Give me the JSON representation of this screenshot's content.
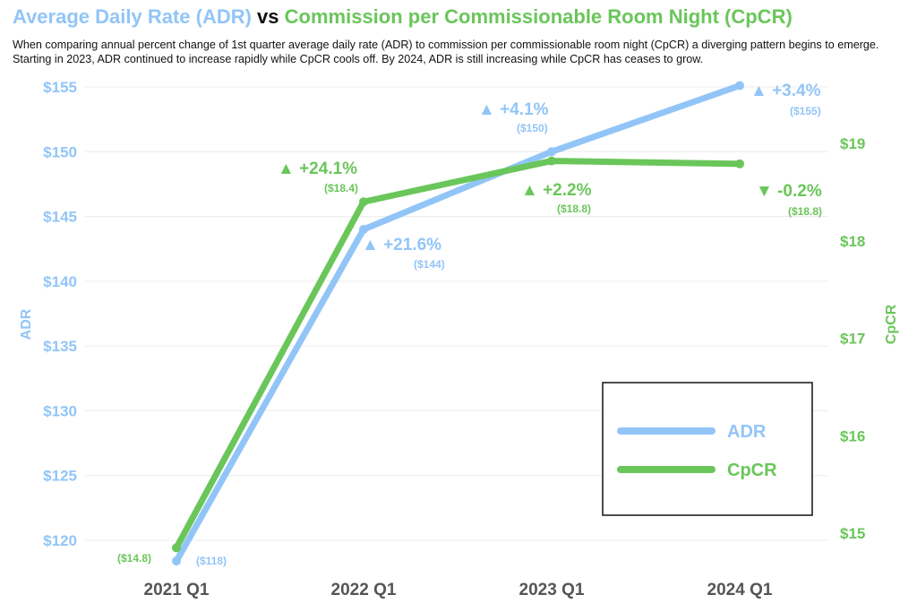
{
  "header": {
    "title_adr": "Average Daily Rate (ADR)",
    "title_vs": " vs ",
    "title_cpcr": "Commission per Commissionable Room Night (CpCR)",
    "subtitle": "When comparing annual percent change of 1st quarter average daily rate (ADR) to commission per commissionable room night (CpCR) a diverging pattern begins to emerge. Starting in 2023, ADR continued to increase rapidly while CpCR cools off. By 2024, ADR is still increasing while CpCR has ceases to grow."
  },
  "colors": {
    "adr": "#92c5f7",
    "cpcr": "#6ac65a",
    "text": "#111111"
  },
  "chart_data": {
    "type": "line",
    "title": "Average Daily Rate (ADR) vs Commission per Commissionable Room Night (CpCR)",
    "categories": [
      "2021 Q1",
      "2022 Q1",
      "2023 Q1",
      "2024 Q1"
    ],
    "series": [
      {
        "name": "ADR",
        "axis": "left",
        "values": [
          118.4,
          144,
          150,
          155.1
        ],
        "pct_labels": [
          "",
          "▲ +21.6%",
          "▲ +4.1%",
          "▲ +3.4%"
        ],
        "value_labels": [
          "($118)",
          "($144)",
          "($150)",
          "($155)"
        ]
      },
      {
        "name": "CpCR",
        "axis": "right",
        "values": [
          14.85,
          18.4,
          18.82,
          18.79
        ],
        "pct_labels": [
          "",
          "▲ +24.1%",
          "▲ +2.2%",
          "▼ -0.2%"
        ],
        "value_labels": [
          "($14.8)",
          "($18.4)",
          "($18.8)",
          "($18.8)"
        ]
      }
    ],
    "left_axis": {
      "label": "ADR",
      "ticks": [
        120,
        125,
        130,
        135,
        140,
        145,
        150,
        155
      ],
      "tick_labels": [
        "$120",
        "$125",
        "$130",
        "$135",
        "$140",
        "$145",
        "$150",
        "$155"
      ],
      "range": [
        118,
        155.6
      ]
    },
    "right_axis": {
      "label": "CpCR",
      "ticks": [
        15,
        16,
        17,
        18,
        19
      ],
      "tick_labels": [
        "$15",
        "$16",
        "$17",
        "$18",
        "$19"
      ],
      "range": [
        14.8,
        19.2
      ]
    },
    "grid": "horizontal",
    "legend": {
      "position": "bottom-right",
      "entries": [
        "ADR",
        "CpCR"
      ]
    }
  }
}
